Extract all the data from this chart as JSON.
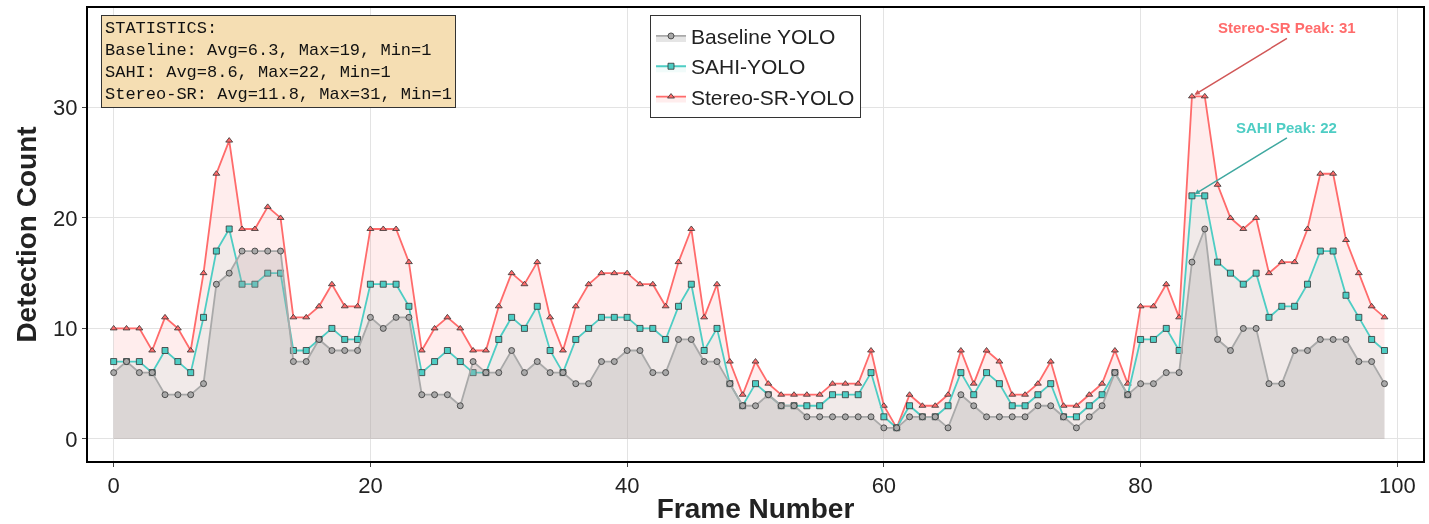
{
  "chart_data": {
    "type": "area",
    "xlabel": "Frame Number",
    "ylabel": "Detection Count",
    "x": [
      0,
      1,
      2,
      3,
      4,
      5,
      6,
      7,
      8,
      9,
      10,
      11,
      12,
      13,
      14,
      15,
      16,
      17,
      18,
      19,
      20,
      21,
      22,
      23,
      24,
      25,
      26,
      27,
      28,
      29,
      30,
      31,
      32,
      33,
      34,
      35,
      36,
      37,
      38,
      39,
      40,
      41,
      42,
      43,
      44,
      45,
      46,
      47,
      48,
      49,
      50,
      51,
      52,
      53,
      54,
      55,
      56,
      57,
      58,
      59,
      60,
      61,
      62,
      63,
      64,
      65,
      66,
      67,
      68,
      69,
      70,
      71,
      72,
      73,
      74,
      75,
      76,
      77,
      78,
      79,
      80,
      81,
      82,
      83,
      84,
      85,
      86,
      87,
      88,
      89,
      90,
      91,
      92,
      93,
      94,
      95,
      96,
      97,
      98,
      99
    ],
    "series": [
      {
        "name": "Baseline YOLO",
        "color": "#a9a9a9",
        "marker": "circle",
        "values": [
          6,
          7,
          6,
          6,
          4,
          4,
          4,
          5,
          14,
          15,
          17,
          17,
          17,
          17,
          7,
          7,
          9,
          8,
          8,
          8,
          11,
          10,
          11,
          11,
          4,
          4,
          4,
          3,
          7,
          6,
          6,
          8,
          6,
          7,
          6,
          6,
          5,
          5,
          7,
          7,
          8,
          8,
          6,
          6,
          9,
          9,
          7,
          7,
          5,
          3,
          3,
          4,
          3,
          3,
          2,
          2,
          2,
          2,
          2,
          2,
          1,
          1,
          2,
          2,
          2,
          1,
          4,
          3,
          2,
          2,
          2,
          2,
          3,
          3,
          2,
          1,
          2,
          3,
          6,
          4,
          5,
          5,
          6,
          6,
          16,
          19,
          9,
          8,
          10,
          10,
          5,
          5,
          8,
          8,
          9,
          9,
          9,
          7,
          7,
          5
        ]
      },
      {
        "name": "SAHI-YOLO",
        "color": "#4ecdc4",
        "marker": "square",
        "values": [
          7,
          7,
          7,
          6,
          8,
          7,
          6,
          11,
          17,
          19,
          14,
          14,
          15,
          15,
          8,
          8,
          9,
          10,
          9,
          9,
          14,
          14,
          14,
          12,
          6,
          7,
          8,
          7,
          6,
          6,
          9,
          11,
          10,
          12,
          8,
          6,
          9,
          10,
          11,
          11,
          11,
          10,
          10,
          9,
          12,
          14,
          8,
          10,
          5,
          3,
          5,
          4,
          3,
          3,
          3,
          3,
          4,
          4,
          4,
          6,
          2,
          1,
          3,
          2,
          2,
          3,
          6,
          4,
          6,
          5,
          3,
          3,
          4,
          5,
          2,
          2,
          3,
          4,
          6,
          4,
          9,
          9,
          10,
          8,
          22,
          22,
          16,
          15,
          14,
          15,
          11,
          12,
          12,
          14,
          17,
          17,
          13,
          11,
          9,
          8
        ]
      },
      {
        "name": "Stereo-SR-YOLO",
        "color": "#ff6b6b",
        "marker": "triangle",
        "values": [
          10,
          10,
          10,
          8,
          11,
          10,
          8,
          15,
          24,
          27,
          19,
          19,
          21,
          20,
          11,
          11,
          12,
          14,
          12,
          12,
          19,
          19,
          19,
          16,
          8,
          10,
          11,
          10,
          8,
          8,
          12,
          15,
          14,
          16,
          11,
          8,
          12,
          14,
          15,
          15,
          15,
          14,
          14,
          12,
          16,
          19,
          11,
          14,
          7,
          4,
          7,
          5,
          4,
          4,
          4,
          4,
          5,
          5,
          5,
          8,
          3,
          1,
          4,
          3,
          3,
          4,
          8,
          5,
          8,
          7,
          4,
          4,
          5,
          7,
          3,
          3,
          4,
          5,
          8,
          5,
          12,
          12,
          14,
          11,
          31,
          31,
          23,
          20,
          19,
          20,
          15,
          16,
          16,
          19,
          24,
          24,
          18,
          15,
          12,
          11
        ]
      }
    ],
    "xlim": [
      -2,
      102
    ],
    "xticks": [
      0,
      20,
      40,
      60,
      80,
      100
    ],
    "ylim": [
      -2,
      39
    ],
    "yticks": [
      0,
      10,
      20,
      30
    ],
    "grid": true,
    "legend": "top",
    "line_style": "solid",
    "annotations": [
      "STATISTICS:\nBaseline: Avg=6.3, Max=19, Min=1\nSAHI: Avg=8.6, Max=22, Min=1\nStereo-SR: Avg=11.8, Max=31, Min=1",
      {
        "text": "Stereo-SR Peak: 31",
        "x": 84,
        "y": 31
      },
      {
        "text": "SAHI Peak: 22",
        "x": 84,
        "y": 22
      }
    ]
  }
}
